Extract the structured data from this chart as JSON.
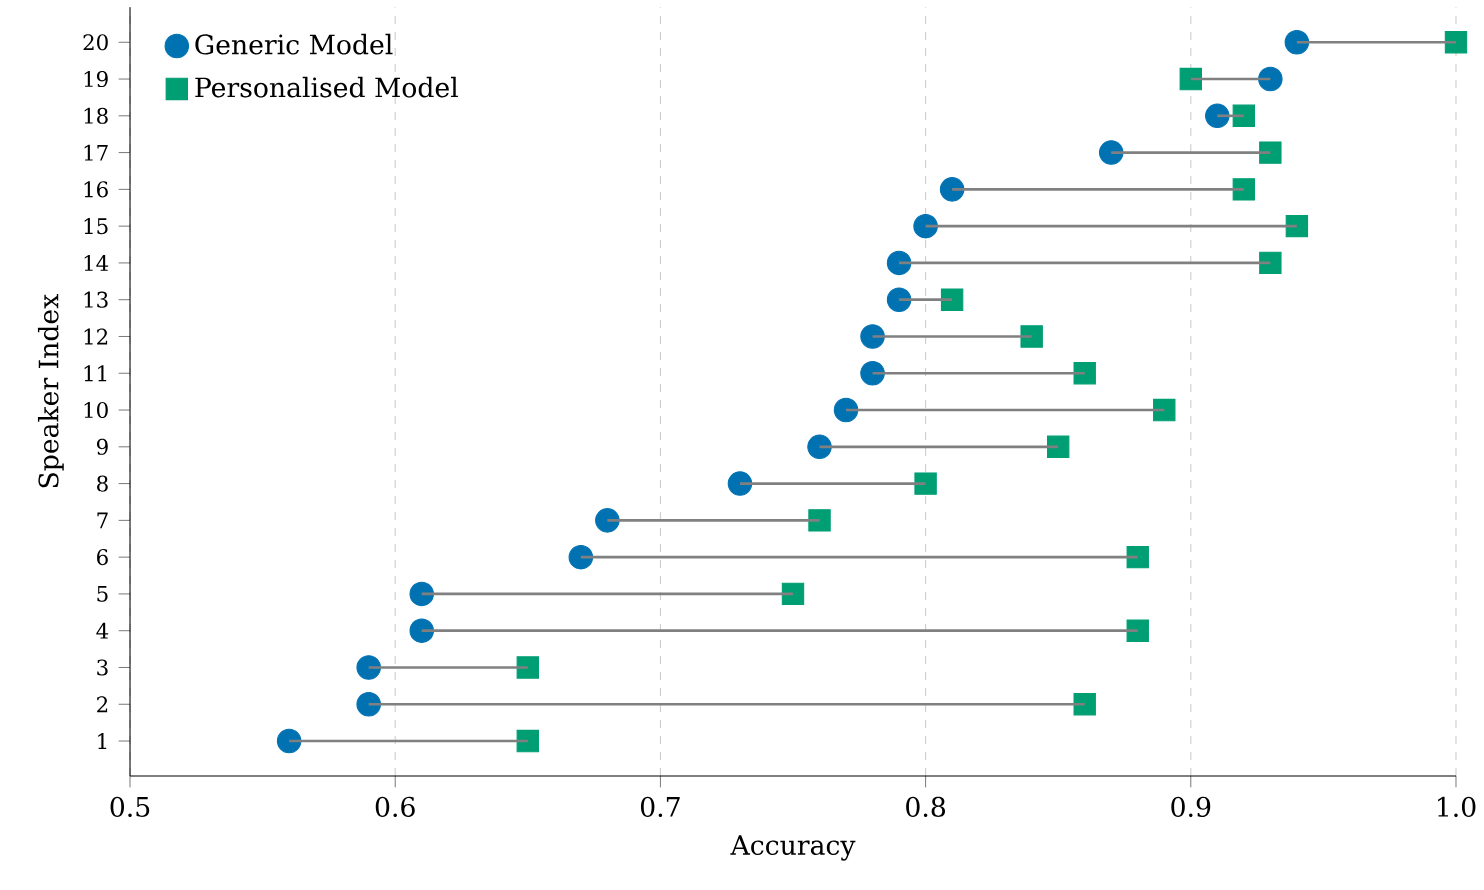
{
  "chart_data": {
    "type": "scatter",
    "xlabel": "Accuracy",
    "ylabel": "Speaker Index",
    "series": [
      {
        "name": "Generic Model",
        "color": "#0072b2",
        "marker": "circle",
        "x": [
          0.56,
          0.59,
          0.59,
          0.61,
          0.61,
          0.67,
          0.68,
          0.73,
          0.76,
          0.77,
          0.78,
          0.78,
          0.79,
          0.79,
          0.8,
          0.81,
          0.87,
          0.91,
          0.93,
          0.94
        ],
        "values": [
          1,
          2,
          3,
          4,
          5,
          6,
          7,
          8,
          9,
          10,
          11,
          12,
          13,
          14,
          15,
          16,
          17,
          18,
          19,
          20
        ],
        "xerrors": [
          [
            0.56,
            0.65
          ],
          [
            0.59,
            0.86
          ],
          [
            0.59,
            0.65
          ],
          [
            0.61,
            0.88
          ],
          [
            0.61,
            0.75
          ],
          [
            0.67,
            0.88
          ],
          [
            0.68,
            0.76
          ],
          [
            0.73,
            0.8
          ],
          [
            0.76,
            0.85
          ],
          [
            0.77,
            0.89
          ],
          [
            0.78,
            0.86
          ],
          [
            0.78,
            0.84
          ],
          [
            0.79,
            0.81
          ],
          [
            0.79,
            0.93
          ],
          [
            0.8,
            0.94
          ],
          [
            0.81,
            0.92
          ],
          [
            0.87,
            0.93
          ],
          [
            0.91,
            0.92
          ],
          [
            0.9,
            0.93
          ],
          [
            0.94,
            1.0
          ]
        ]
      },
      {
        "name": "Personalised Model",
        "color": "#009e73",
        "marker": "square",
        "x": [
          0.65,
          0.86,
          0.65,
          0.88,
          0.75,
          0.88,
          0.76,
          0.8,
          0.85,
          0.89,
          0.86,
          0.84,
          0.81,
          0.93,
          0.94,
          0.92,
          0.93,
          0.92,
          0.9,
          1.0
        ],
        "values": [
          1,
          2,
          3,
          4,
          5,
          6,
          7,
          8,
          9,
          10,
          11,
          12,
          13,
          14,
          15,
          16,
          17,
          18,
          19,
          20
        ]
      }
    ],
    "xlim": [
      0.5,
      1.0
    ],
    "xticks": [
      0.5,
      0.6,
      0.7,
      0.8,
      0.9,
      {
        "value": 1.0,
        "label": "1.0"
      }
    ],
    "ylim": [
      0.05,
      20.95
    ],
    "yticks": [
      1,
      2,
      3,
      4,
      5,
      6,
      7,
      8,
      9,
      10,
      11,
      12,
      13,
      14,
      15,
      16,
      17,
      18,
      19,
      20
    ],
    "grid": "x",
    "legend": "top left"
  }
}
